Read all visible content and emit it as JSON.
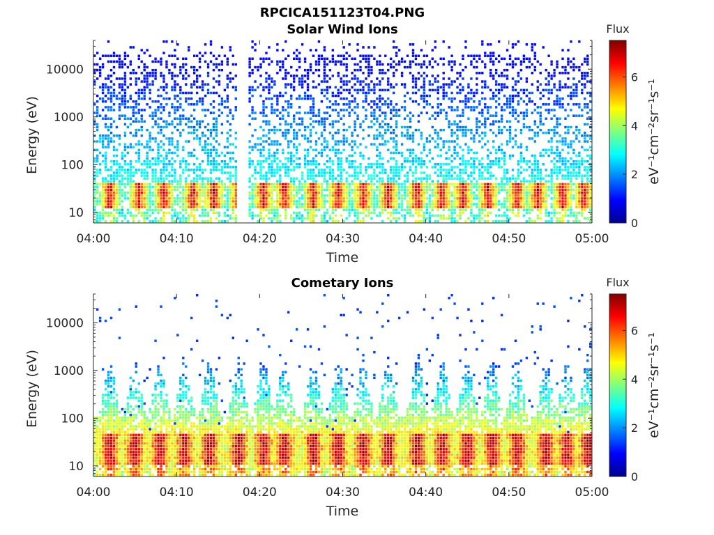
{
  "figure": {
    "title": "RPCICA151123T04.PNG"
  },
  "colormap": [
    "#00008f",
    "#0000ff",
    "#0080ff",
    "#00ffff",
    "#80ff80",
    "#ffff00",
    "#ff8000",
    "#ff0000",
    "#800000"
  ],
  "chart_data": [
    {
      "type": "heatmap",
      "title": "Solar Wind Ions",
      "xlabel": "Time",
      "ylabel": "Energy (eV)",
      "x_ticks": [
        "04:00",
        "04:10",
        "04:20",
        "04:30",
        "04:40",
        "04:50",
        "05:00"
      ],
      "y_ticks": [
        "10",
        "100",
        "1000",
        "10000"
      ],
      "y_scale": "log",
      "ylim": [
        6,
        40000
      ],
      "x_range": [
        "04:00",
        "05:00"
      ],
      "colorbar": {
        "label": "Flux",
        "unit": "eV⁻¹cm⁻²sr⁻¹s⁻¹",
        "ticks": [
          "0",
          "2",
          "4",
          "6"
        ],
        "range": [
          0,
          7.5
        ]
      },
      "pulse_times_min": [
        2,
        5.5,
        8.5,
        12,
        14.5,
        17.5,
        20.5,
        23,
        26.5,
        29.5,
        32.5,
        35.5,
        39,
        42,
        44.5,
        47.5,
        51,
        53.5,
        56.5,
        59
      ],
      "peak_energy_eV": [
        12,
        40
      ],
      "peak_flux": 6.8,
      "data_gap_min": [
        17.3,
        18.7
      ]
    },
    {
      "type": "heatmap",
      "title": "Cometary Ions",
      "xlabel": "Time",
      "ylabel": "Energy (eV)",
      "x_ticks": [
        "04:00",
        "04:10",
        "04:20",
        "04:30",
        "04:40",
        "04:50",
        "05:00"
      ],
      "y_ticks": [
        "10",
        "100",
        "1000",
        "10000"
      ],
      "y_scale": "log",
      "ylim": [
        6,
        40000
      ],
      "x_range": [
        "04:00",
        "05:00"
      ],
      "colorbar": {
        "label": "Flux",
        "unit": "eV⁻¹cm⁻²sr⁻¹s⁻¹",
        "ticks": [
          "0",
          "2",
          "4",
          "6"
        ],
        "range": [
          0,
          7.5
        ]
      },
      "pulse_times_min": [
        2,
        5,
        8,
        11,
        14,
        17.5,
        20.5,
        23,
        26.5,
        29.5,
        32.5,
        35.5,
        39,
        42,
        45,
        48,
        51,
        54.5,
        57,
        59.5
      ],
      "peak_energy_eV": [
        10,
        45
      ],
      "peak_flux": 7.2
    }
  ]
}
